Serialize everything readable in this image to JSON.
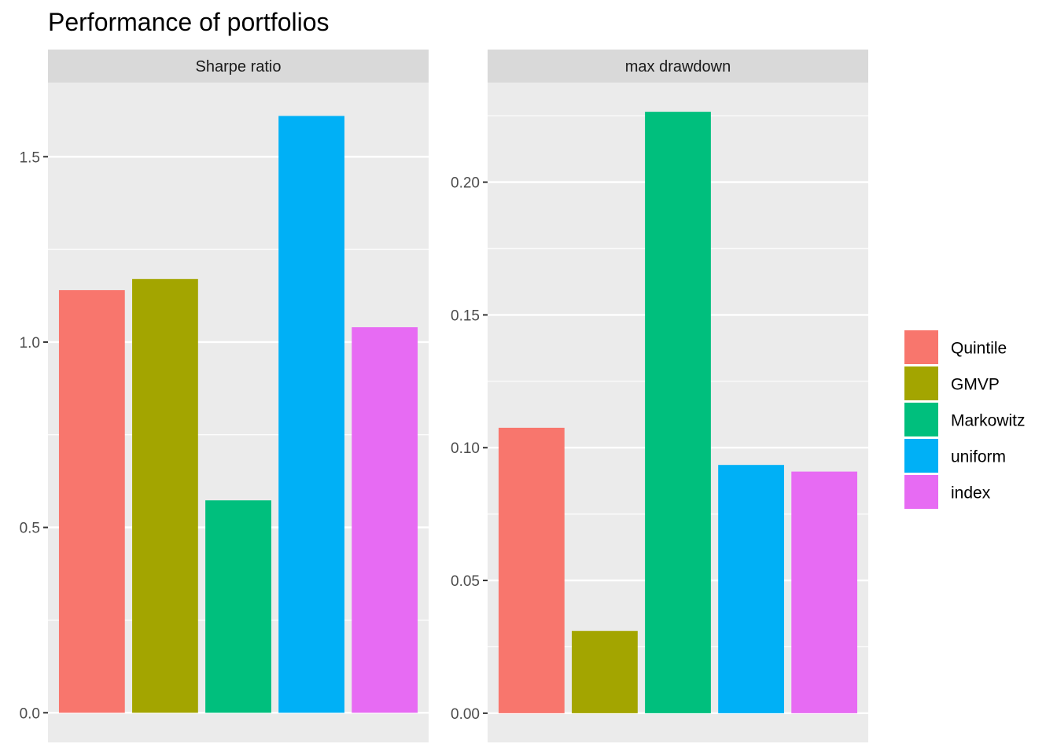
{
  "chart_data": {
    "type": "bar",
    "title": "Performance of portfolios",
    "categories": [
      "Quintile",
      "GMVP",
      "Markowitz",
      "uniform",
      "index"
    ],
    "colors": [
      "#F8766D",
      "#A3A500",
      "#00BF7D",
      "#00B0F6",
      "#E76BF3"
    ],
    "legend": {
      "placement": "right",
      "entries": [
        "Quintile",
        "GMVP",
        "Markowitz",
        "uniform",
        "index"
      ]
    },
    "panels": [
      {
        "strip": "Sharpe ratio",
        "values": [
          1.14,
          1.17,
          0.573,
          1.61,
          1.04
        ],
        "ylim": [
          -0.08,
          1.7
        ],
        "ticks": [
          {
            "value": 0.0,
            "label": "0.0"
          },
          {
            "value": 0.5,
            "label": "0.5"
          },
          {
            "value": 1.0,
            "label": "1.0"
          },
          {
            "value": 1.5,
            "label": "1.5"
          }
        ],
        "minor_gridlines": [
          0.25,
          0.75,
          1.25
        ]
      },
      {
        "strip": "max drawdown",
        "values": [
          0.1075,
          0.031,
          0.2265,
          0.0935,
          0.091
        ],
        "ylim": [
          -0.011,
          0.2375
        ],
        "ticks": [
          {
            "value": 0.0,
            "label": "0.00"
          },
          {
            "value": 0.05,
            "label": "0.05"
          },
          {
            "value": 0.1,
            "label": "0.10"
          },
          {
            "value": 0.15,
            "label": "0.15"
          },
          {
            "value": 0.2,
            "label": "0.20"
          }
        ],
        "minor_gridlines": [
          0.025,
          0.075,
          0.125,
          0.175,
          0.225
        ]
      }
    ],
    "grid": true
  }
}
